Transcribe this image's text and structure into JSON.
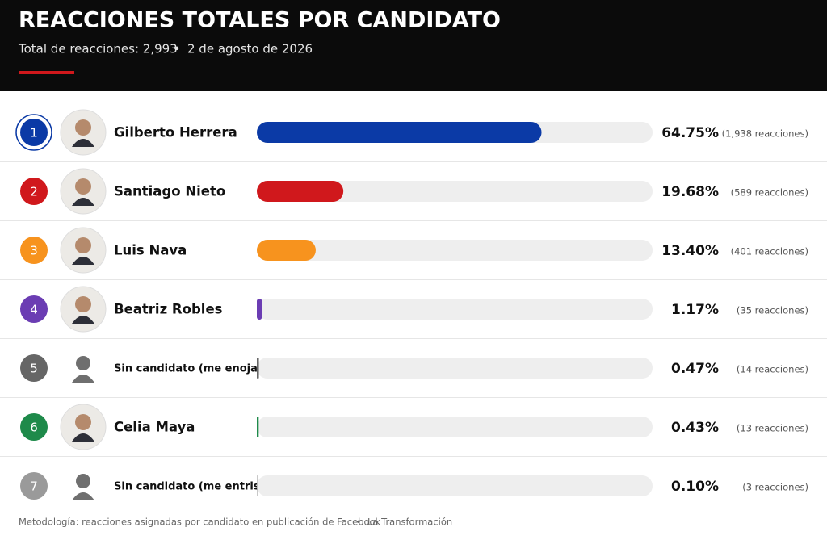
{
  "chart_data": {
    "type": "bar",
    "title": "REACCIONES TOTALES POR CANDIDATO",
    "total_label": "Total de reacciones: 2,993",
    "date": "2 de agosto de 2026",
    "ranks": [
      1,
      2,
      3,
      4,
      5,
      6,
      7
    ],
    "categories": [
      "Gilberto Herrera",
      "Santiago Nieto",
      "Luis Nava",
      "Beatriz Robles",
      "Sin candidato (me enoja)",
      "Celia Maya",
      "Sin candidato (me entristece)"
    ],
    "values": [
      64.75,
      19.68,
      13.4,
      1.17,
      0.47,
      0.43,
      0.1
    ],
    "value_labels": [
      "64.75%",
      "19.68%",
      "13.40%",
      "1.17%",
      "0.47%",
      "0.43%",
      "0.10%"
    ],
    "reactions": {
      "values": [
        1938,
        589,
        401,
        35,
        14,
        13,
        3
      ],
      "value_labels": [
        "(1,938 reacciones)",
        "(589 reacciones)",
        "(401 reacciones)",
        "(35 reacciones)",
        "(14 reacciones)",
        "(13 reacciones)",
        "(3 reacciones)"
      ]
    },
    "colors": [
      "#0b3aa6",
      "#d0181c",
      "#f7931e",
      "#6b3db3",
      "#666666",
      "#1e8a4a",
      "#9a9a9a"
    ],
    "xlim": [
      0,
      90
    ],
    "methodology": "Metodología: reacciones asignadas por candidato en publicación de Facebook",
    "source": "La Transformación"
  }
}
